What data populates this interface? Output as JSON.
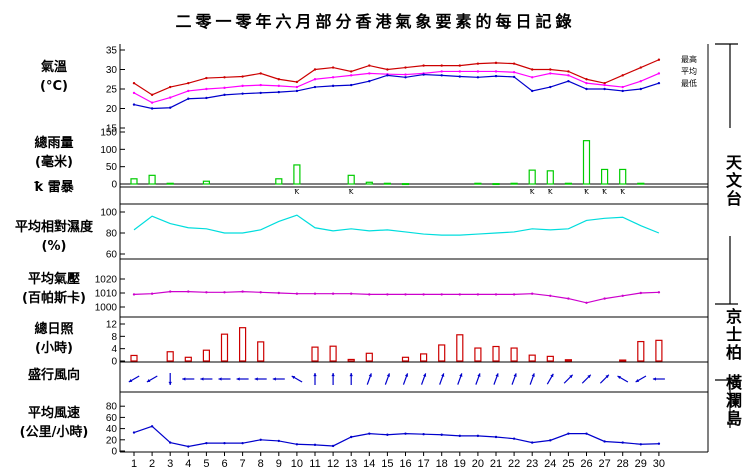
{
  "title": "二零一零年六月部分香港氣象要素的每日記錄",
  "panels": {
    "temperature": {
      "label": "氣溫",
      "unit": "(°C)"
    },
    "rainfall": {
      "label": "總雨量",
      "unit": "(毫米)"
    },
    "thunder": {
      "label": "雷暴",
      "symbol": "ꝁ"
    },
    "humidity": {
      "label": "平均相對濕度",
      "unit": "(%)"
    },
    "pressure": {
      "label": "平均氣壓",
      "unit": "(百帕斯卡)"
    },
    "sunshine": {
      "label": "總日照",
      "unit": "(小時)"
    },
    "wind_dir": {
      "label": "盛行風向"
    },
    "wind_speed": {
      "label": "平均風速",
      "unit": "(公里/小時)"
    }
  },
  "stations": {
    "observatory": "天文台",
    "kings_park": "京士柏",
    "waglan": "橫瀾島"
  },
  "chart_data": {
    "type": "line",
    "x": [
      1,
      2,
      3,
      4,
      5,
      6,
      7,
      8,
      9,
      10,
      11,
      12,
      13,
      14,
      15,
      16,
      17,
      18,
      19,
      20,
      21,
      22,
      23,
      24,
      25,
      26,
      27,
      28,
      29,
      30
    ],
    "xlabel": "",
    "colors": {
      "max": "#cc0000",
      "mean": "#ff00ff",
      "min": "#0000cc",
      "rain": "#00cc00",
      "humidity": "#00dddd",
      "pressure": "#cc00cc",
      "sunshine": "#cc0000",
      "wind": "#0000cc"
    },
    "temperature": {
      "ylim": [
        15,
        35
      ],
      "ticks": [
        "15",
        "20",
        "25",
        "30",
        "35"
      ],
      "series": [
        {
          "name": "最高",
          "values": [
            26.5,
            23.5,
            25.5,
            26.5,
            27.8,
            28,
            28.2,
            29,
            27.5,
            26.8,
            30,
            30.5,
            29.5,
            31,
            30,
            30.5,
            31,
            31,
            31,
            31.5,
            31.7,
            31.5,
            30,
            30,
            29.5,
            27.5,
            26.5,
            28.5,
            30.5,
            32.5
          ]
        },
        {
          "name": "平均",
          "values": [
            24,
            21.5,
            22.8,
            24.5,
            25,
            25.3,
            25.8,
            26,
            25.8,
            25.5,
            27.5,
            28,
            28.5,
            29,
            28.8,
            28.7,
            29,
            29.5,
            29.5,
            29.5,
            29.5,
            29.3,
            28,
            29,
            28.5,
            26.5,
            26,
            25.5,
            27,
            29
          ]
        },
        {
          "name": "最低",
          "values": [
            21,
            20,
            20.2,
            22.5,
            22.7,
            23.5,
            23.8,
            24,
            24.2,
            24.5,
            25.5,
            25.8,
            26,
            27,
            28.5,
            28,
            28.7,
            28.5,
            28.2,
            28,
            28.3,
            28.1,
            24.5,
            25.5,
            27,
            25,
            25,
            24.5,
            25,
            26.5
          ]
        }
      ]
    },
    "rainfall": {
      "ylim": [
        0,
        150
      ],
      "ticks": [
        "0",
        "50",
        "100",
        "150"
      ],
      "values": [
        15,
        25,
        2,
        0,
        8,
        0,
        0,
        0,
        15,
        55,
        0,
        0,
        25,
        5,
        2,
        1,
        0,
        0,
        0,
        2,
        1,
        2,
        40,
        38,
        2,
        125,
        42,
        42,
        2,
        0
      ]
    },
    "thunder": {
      "days": [
        10,
        13,
        23,
        24,
        26,
        27,
        28
      ]
    },
    "humidity": {
      "ylim": [
        60,
        100
      ],
      "ticks": [
        "60",
        "80",
        "100"
      ],
      "values": [
        83,
        96,
        89,
        85,
        84,
        80,
        80,
        83,
        91,
        97,
        85,
        82,
        84,
        82,
        83,
        81,
        79,
        78,
        78,
        79,
        80,
        81,
        84,
        83,
        84,
        92,
        94,
        95,
        87,
        80
      ]
    },
    "pressure": {
      "ylim": [
        1000,
        1020
      ],
      "ticks": [
        "1000",
        "1010",
        "1020"
      ],
      "values": [
        1009,
        1009.5,
        1011,
        1011,
        1010.5,
        1010.5,
        1011,
        1010.5,
        1010,
        1009.5,
        1009.5,
        1009.5,
        1009.5,
        1009,
        1009,
        1009,
        1009,
        1009,
        1009,
        1009,
        1009,
        1009,
        1009.5,
        1008,
        1006,
        1003,
        1006,
        1008,
        1010,
        1010.5
      ]
    },
    "sunshine": {
      "ylim": [
        0,
        12
      ],
      "ticks": [
        "0",
        "4",
        "8",
        "12"
      ],
      "values": [
        1.8,
        0,
        3,
        1.2,
        3.5,
        8.7,
        10.8,
        6.2,
        0,
        0,
        4.5,
        4.8,
        0.5,
        2.5,
        0,
        1.2,
        2.3,
        5.2,
        8.5,
        4.2,
        4.7,
        4.2,
        1.9,
        1.5,
        0.4,
        0,
        0,
        0.3,
        6.3,
        6.7
      ]
    },
    "wind_direction": {
      "values_deg": [
        60,
        60,
        0,
        90,
        90,
        90,
        90,
        90,
        90,
        120,
        180,
        180,
        180,
        200,
        200,
        200,
        200,
        200,
        200,
        200,
        200,
        200,
        200,
        210,
        225,
        225,
        225,
        120,
        60,
        90
      ]
    },
    "wind_speed": {
      "ylim": [
        0,
        100
      ],
      "ticks": [
        "0",
        "20",
        "40",
        "60",
        "80"
      ],
      "values": [
        33,
        44,
        15,
        8,
        14,
        14,
        14,
        20,
        18,
        12,
        11,
        9,
        25,
        31,
        29,
        31,
        30,
        29,
        27,
        27,
        25,
        22,
        15,
        19,
        31,
        31,
        17,
        15,
        12,
        13
      ]
    }
  }
}
